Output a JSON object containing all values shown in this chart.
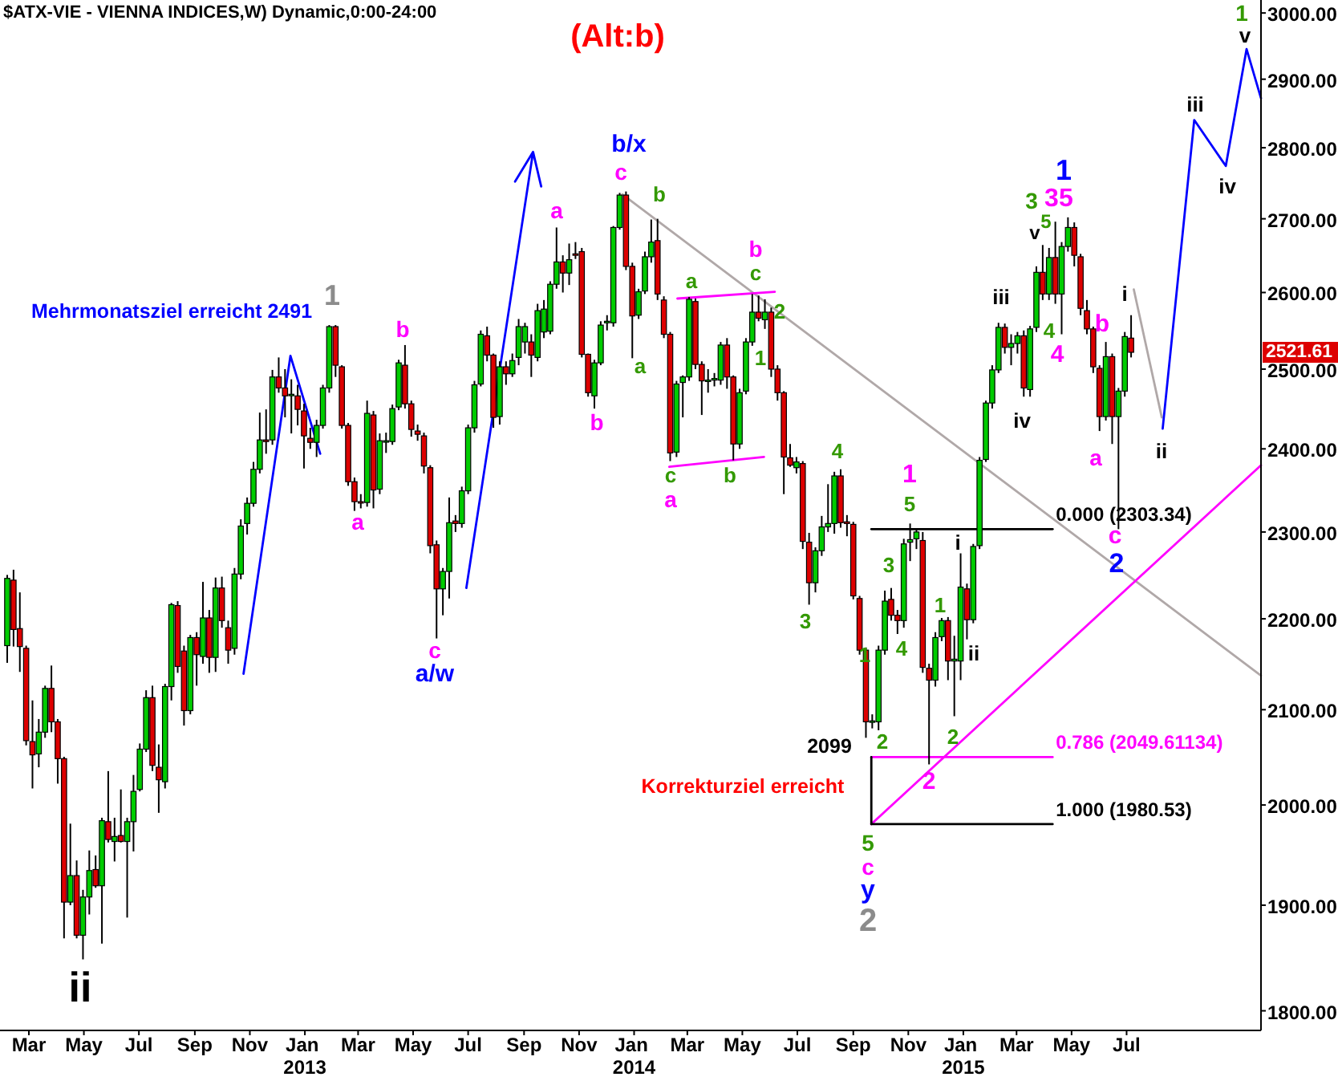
{
  "chart_data": {
    "type": "candlestick",
    "title": "$ATX-VIE - VIENNA INDICES,W) Dynamic,0:00-24:00",
    "subtitle": "(Alt:b)",
    "x": [
      "2012-02-06",
      "2012-02-13",
      "2012-02-20",
      "2012-02-27",
      "2012-03-05",
      "2012-03-12",
      "2012-03-19",
      "2012-03-26",
      "2012-04-02",
      "2012-04-09",
      "2012-04-16",
      "2012-04-23",
      "2012-04-30",
      "2012-05-07",
      "2012-05-14",
      "2012-05-21",
      "2012-05-28",
      "2012-06-04",
      "2012-06-11",
      "2012-06-18",
      "2012-06-25",
      "2012-07-02",
      "2012-07-09",
      "2012-07-16",
      "2012-07-23",
      "2012-07-30",
      "2012-08-06",
      "2012-08-13",
      "2012-08-20",
      "2012-08-27",
      "2012-09-03",
      "2012-09-10",
      "2012-09-17",
      "2012-09-24",
      "2012-10-01",
      "2012-10-08",
      "2012-10-15",
      "2012-10-22",
      "2012-10-29",
      "2012-11-05",
      "2012-11-12",
      "2012-11-19",
      "2012-11-26",
      "2012-12-03",
      "2012-12-10",
      "2012-12-17",
      "2012-12-24",
      "2012-12-31",
      "2013-01-07",
      "2013-01-14",
      "2013-01-21",
      "2013-01-28",
      "2013-02-04",
      "2013-02-11",
      "2013-02-18",
      "2013-02-25",
      "2013-03-04",
      "2013-03-11",
      "2013-03-18",
      "2013-03-25",
      "2013-04-01",
      "2013-04-08",
      "2013-04-15",
      "2013-04-22",
      "2013-04-29",
      "2013-05-06",
      "2013-05-13",
      "2013-05-20",
      "2013-05-27",
      "2013-06-03",
      "2013-06-10",
      "2013-06-17",
      "2013-06-24",
      "2013-07-01",
      "2013-07-08",
      "2013-07-15",
      "2013-07-22",
      "2013-07-29",
      "2013-08-05",
      "2013-08-12",
      "2013-08-19",
      "2013-08-26",
      "2013-09-02",
      "2013-09-09",
      "2013-09-16",
      "2013-09-23",
      "2013-09-30",
      "2013-10-07",
      "2013-10-14",
      "2013-10-21",
      "2013-10-28",
      "2013-11-04",
      "2013-11-11",
      "2013-11-18",
      "2013-11-25",
      "2013-12-02",
      "2013-12-09",
      "2013-12-16",
      "2013-12-23",
      "2013-12-30",
      "2014-01-06",
      "2014-01-13",
      "2014-01-20",
      "2014-01-27",
      "2014-02-03",
      "2014-02-10",
      "2014-02-17",
      "2014-02-24",
      "2014-03-03",
      "2014-03-10",
      "2014-03-17",
      "2014-03-24",
      "2014-03-31",
      "2014-04-07",
      "2014-04-14",
      "2014-04-21",
      "2014-04-28",
      "2014-05-05",
      "2014-05-12",
      "2014-05-19",
      "2014-05-26",
      "2014-06-02",
      "2014-06-09",
      "2014-06-16",
      "2014-06-23",
      "2014-06-30",
      "2014-07-07",
      "2014-07-14",
      "2014-07-21",
      "2014-07-28",
      "2014-08-04",
      "2014-08-11",
      "2014-08-18",
      "2014-08-25",
      "2014-09-01",
      "2014-09-08",
      "2014-09-15",
      "2014-09-22",
      "2014-09-29",
      "2014-10-06",
      "2014-10-13",
      "2014-10-20",
      "2014-10-27",
      "2014-11-03",
      "2014-11-10",
      "2014-11-17",
      "2014-11-24",
      "2014-12-01",
      "2014-12-08",
      "2014-12-15",
      "2014-12-22",
      "2014-12-29",
      "2015-01-05",
      "2015-01-12",
      "2015-01-19",
      "2015-01-26",
      "2015-02-02",
      "2015-02-09",
      "2015-02-16",
      "2015-02-23",
      "2015-03-02",
      "2015-03-09",
      "2015-03-16",
      "2015-03-23",
      "2015-03-30",
      "2015-04-06",
      "2015-04-13",
      "2015-04-20",
      "2015-04-27",
      "2015-05-04",
      "2015-05-11",
      "2015-05-18",
      "2015-05-25",
      "2015-06-01",
      "2015-06-08",
      "2015-06-15",
      "2015-06-22",
      "2015-06-29",
      "2015-07-06"
    ],
    "ohlc": [
      [
        2170,
        2250,
        2151,
        2246
      ],
      [
        2244,
        2256,
        2169,
        2188
      ],
      [
        2189,
        2230,
        2141,
        2169
      ],
      [
        2167,
        2170,
        2062,
        2067
      ],
      [
        2066,
        2110,
        2017,
        2052
      ],
      [
        2053,
        2090,
        2039,
        2076
      ],
      [
        2076,
        2126,
        2070,
        2123
      ],
      [
        2123,
        2148,
        2076,
        2087
      ],
      [
        2087,
        2090,
        2022,
        2048
      ],
      [
        2048,
        2050,
        1868,
        1903
      ],
      [
        1903,
        1981,
        1900,
        1929
      ],
      [
        1929,
        1944,
        1868,
        1871
      ],
      [
        1871,
        1915,
        1848,
        1908
      ],
      [
        1908,
        1954,
        1891,
        1934
      ],
      [
        1935,
        1949,
        1917,
        1919
      ],
      [
        1919,
        1987,
        1863,
        1984
      ],
      [
        1983,
        2035,
        1962,
        1965
      ],
      [
        1963,
        1987,
        1943,
        1968
      ],
      [
        1969,
        2016,
        1962,
        1963
      ],
      [
        1963,
        1987,
        1888,
        1983
      ],
      [
        1983,
        2031,
        1953,
        2014
      ],
      [
        2016,
        2064,
        2014,
        2058
      ],
      [
        2058,
        2121,
        2055,
        2113
      ],
      [
        2113,
        2126,
        2035,
        2041
      ],
      [
        2039,
        2063,
        1992,
        2026
      ],
      [
        2024,
        2128,
        2017,
        2125
      ],
      [
        2125,
        2218,
        2110,
        2216
      ],
      [
        2215,
        2220,
        2140,
        2147
      ],
      [
        2164,
        2170,
        2083,
        2099
      ],
      [
        2099,
        2182,
        2095,
        2179
      ],
      [
        2179,
        2185,
        2126,
        2160
      ],
      [
        2158,
        2242,
        2150,
        2201
      ],
      [
        2201,
        2210,
        2140,
        2157
      ],
      [
        2157,
        2247,
        2141,
        2235
      ],
      [
        2235,
        2248,
        2190,
        2198
      ],
      [
        2190,
        2198,
        2150,
        2165
      ],
      [
        2167,
        2258,
        2160,
        2251
      ],
      [
        2251,
        2315,
        2245,
        2307
      ],
      [
        2310,
        2341,
        2297,
        2334
      ],
      [
        2334,
        2384,
        2330,
        2375
      ],
      [
        2375,
        2445,
        2370,
        2411
      ],
      [
        2411,
        2449,
        2394,
        2409
      ],
      [
        2411,
        2499,
        2405,
        2490
      ],
      [
        2490,
        2515,
        2470,
        2476
      ],
      [
        2476,
        2500,
        2439,
        2466
      ],
      [
        2467,
        2487,
        2419,
        2468
      ],
      [
        2466,
        2480,
        2429,
        2449
      ],
      [
        2447,
        2456,
        2376,
        2416
      ],
      [
        2413,
        2426,
        2400,
        2408
      ],
      [
        2408,
        2436,
        2390,
        2429
      ],
      [
        2429,
        2480,
        2425,
        2476
      ],
      [
        2476,
        2557,
        2470,
        2555
      ],
      [
        2555,
        2557,
        2490,
        2505
      ],
      [
        2503,
        2505,
        2425,
        2429
      ],
      [
        2429,
        2432,
        2355,
        2360
      ],
      [
        2360,
        2365,
        2325,
        2336
      ],
      [
        2336,
        2345,
        2328,
        2335
      ],
      [
        2335,
        2460,
        2330,
        2444
      ],
      [
        2442,
        2447,
        2328,
        2350
      ],
      [
        2351,
        2419,
        2345,
        2410
      ],
      [
        2409,
        2420,
        2395,
        2410
      ],
      [
        2409,
        2455,
        2405,
        2450
      ],
      [
        2452,
        2512,
        2448,
        2508
      ],
      [
        2505,
        2531,
        2450,
        2456
      ],
      [
        2456,
        2460,
        2415,
        2424
      ],
      [
        2422,
        2430,
        2410,
        2418
      ],
      [
        2416,
        2420,
        2370,
        2379
      ],
      [
        2377,
        2380,
        2275,
        2284
      ],
      [
        2285,
        2290,
        2178,
        2234
      ],
      [
        2234,
        2258,
        2204,
        2254
      ],
      [
        2254,
        2341,
        2223,
        2311
      ],
      [
        2313,
        2320,
        2300,
        2310
      ],
      [
        2310,
        2354,
        2305,
        2349
      ],
      [
        2349,
        2430,
        2345,
        2426
      ],
      [
        2426,
        2485,
        2420,
        2480
      ],
      [
        2481,
        2550,
        2478,
        2545
      ],
      [
        2543,
        2555,
        2510,
        2518
      ],
      [
        2518,
        2520,
        2426,
        2439
      ],
      [
        2440,
        2510,
        2430,
        2503
      ],
      [
        2503,
        2510,
        2480,
        2494
      ],
      [
        2494,
        2520,
        2490,
        2511
      ],
      [
        2515,
        2565,
        2505,
        2555
      ],
      [
        2535,
        2560,
        2520,
        2555
      ],
      [
        2535,
        2545,
        2490,
        2518
      ],
      [
        2515,
        2585,
        2510,
        2576
      ],
      [
        2548,
        2590,
        2540,
        2578
      ],
      [
        2549,
        2615,
        2545,
        2611
      ],
      [
        2611,
        2688,
        2605,
        2641
      ],
      [
        2641,
        2650,
        2600,
        2626
      ],
      [
        2626,
        2666,
        2610,
        2644
      ],
      [
        2652,
        2668,
        2645,
        2650
      ],
      [
        2655,
        2660,
        2515,
        2519
      ],
      [
        2519,
        2520,
        2465,
        2470
      ],
      [
        2466,
        2512,
        2450,
        2508
      ],
      [
        2508,
        2562,
        2505,
        2557
      ],
      [
        2560,
        2570,
        2550,
        2562
      ],
      [
        2560,
        2690,
        2555,
        2688
      ],
      [
        2688,
        2736,
        2685,
        2733
      ],
      [
        2733,
        2738,
        2630,
        2635
      ],
      [
        2635,
        2640,
        2514,
        2569
      ],
      [
        2570,
        2605,
        2565,
        2601
      ],
      [
        2602,
        2655,
        2598,
        2648
      ],
      [
        2648,
        2699,
        2640,
        2668
      ],
      [
        2670,
        2700,
        2590,
        2598
      ],
      [
        2590,
        2595,
        2540,
        2545
      ],
      [
        2545,
        2548,
        2385,
        2395
      ],
      [
        2396,
        2485,
        2390,
        2481
      ],
      [
        2483,
        2492,
        2439,
        2490
      ],
      [
        2490,
        2594,
        2485,
        2591
      ],
      [
        2588,
        2592,
        2500,
        2506
      ],
      [
        2506,
        2510,
        2442,
        2485
      ],
      [
        2485,
        2500,
        2470,
        2486
      ],
      [
        2486,
        2495,
        2478,
        2488
      ],
      [
        2486,
        2535,
        2480,
        2531
      ],
      [
        2531,
        2540,
        2475,
        2490
      ],
      [
        2490,
        2492,
        2386,
        2406
      ],
      [
        2406,
        2475,
        2400,
        2470
      ],
      [
        2472,
        2540,
        2468,
        2535
      ],
      [
        2535,
        2598,
        2530,
        2574
      ],
      [
        2574,
        2596,
        2562,
        2566
      ],
      [
        2564,
        2591,
        2552,
        2574
      ],
      [
        2574,
        2580,
        2490,
        2500
      ],
      [
        2500,
        2505,
        2460,
        2470
      ],
      [
        2470,
        2472,
        2345,
        2390
      ],
      [
        2389,
        2406,
        2378,
        2380
      ],
      [
        2377,
        2390,
        2370,
        2384
      ],
      [
        2382,
        2385,
        2280,
        2289
      ],
      [
        2288,
        2299,
        2216,
        2241
      ],
      [
        2241,
        2282,
        2230,
        2278
      ],
      [
        2278,
        2319,
        2272,
        2306
      ],
      [
        2306,
        2357,
        2300,
        2310
      ],
      [
        2310,
        2372,
        2298,
        2367
      ],
      [
        2367,
        2375,
        2305,
        2311
      ],
      [
        2312,
        2320,
        2295,
        2310
      ],
      [
        2309,
        2312,
        2222,
        2226
      ],
      [
        2223,
        2226,
        2160,
        2165
      ],
      [
        2165,
        2168,
        2070,
        2087
      ],
      [
        2087,
        2095,
        2080,
        2088
      ],
      [
        2087,
        2170,
        2078,
        2165
      ],
      [
        2165,
        2232,
        2160,
        2220
      ],
      [
        2222,
        2235,
        2198,
        2204
      ],
      [
        2204,
        2210,
        2183,
        2198
      ],
      [
        2198,
        2292,
        2190,
        2286
      ],
      [
        2288,
        2310,
        2266,
        2291
      ],
      [
        2292,
        2303,
        2280,
        2300
      ],
      [
        2290,
        2300,
        2140,
        2146
      ],
      [
        2145,
        2150,
        2042,
        2132
      ],
      [
        2132,
        2185,
        2125,
        2179
      ],
      [
        2180,
        2201,
        2175,
        2198
      ],
      [
        2198,
        2202,
        2132,
        2153
      ],
      [
        2153,
        2181,
        2093,
        2155
      ],
      [
        2153,
        2275,
        2132,
        2236
      ],
      [
        2234,
        2240,
        2177,
        2199
      ],
      [
        2199,
        2286,
        2195,
        2283
      ],
      [
        2284,
        2390,
        2280,
        2386
      ],
      [
        2387,
        2460,
        2384,
        2457
      ],
      [
        2457,
        2505,
        2450,
        2499
      ],
      [
        2499,
        2560,
        2495,
        2554
      ],
      [
        2554,
        2559,
        2520,
        2528
      ],
      [
        2528,
        2545,
        2505,
        2533
      ],
      [
        2533,
        2548,
        2520,
        2543
      ],
      [
        2543,
        2550,
        2465,
        2476
      ],
      [
        2474,
        2556,
        2465,
        2552
      ],
      [
        2554,
        2635,
        2548,
        2627
      ],
      [
        2627,
        2664,
        2590,
        2598
      ],
      [
        2598,
        2660,
        2590,
        2647
      ],
      [
        2647,
        2696,
        2585,
        2598
      ],
      [
        2598,
        2668,
        2545,
        2662
      ],
      [
        2662,
        2702,
        2655,
        2688
      ],
      [
        2688,
        2695,
        2635,
        2650
      ],
      [
        2648,
        2652,
        2570,
        2579
      ],
      [
        2576,
        2590,
        2545,
        2552
      ],
      [
        2552,
        2555,
        2495,
        2503
      ],
      [
        2501,
        2505,
        2422,
        2440
      ],
      [
        2440,
        2535,
        2435,
        2516
      ],
      [
        2516,
        2520,
        2406,
        2440
      ],
      [
        2440,
        2476,
        2303.34,
        2472
      ],
      [
        2472,
        2548,
        2465,
        2542
      ],
      [
        2540,
        2570,
        2515,
        2521.61
      ]
    ],
    "colors": [
      "#00cc00",
      "#dd0000",
      "#dd0000",
      "#dd0000",
      "#dd0000",
      "#00cc00",
      "#00cc00",
      "#dd0000",
      "#dd0000",
      "#dd0000",
      "#00cc00",
      "#dd0000",
      "#00cc00",
      "#00cc00",
      "#dd0000",
      "#00cc00",
      "#dd0000",
      "#00cc00",
      "#dd0000",
      "#00cc00",
      "#00cc00",
      "#00cc00",
      "#00cc00",
      "#dd0000",
      "#dd0000",
      "#00cc00",
      "#00cc00",
      "#dd0000",
      "#dd0000",
      "#00cc00",
      "#dd0000",
      "#00cc00",
      "#dd0000",
      "#00cc00",
      "#dd0000",
      "#dd0000",
      "#00cc00",
      "#00cc00",
      "#00cc00",
      "#00cc00",
      "#00cc00",
      "#dd0000",
      "#00cc00",
      "#dd0000",
      "#dd0000",
      "#00cc00",
      "#dd0000",
      "#dd0000",
      "#dd0000",
      "#00cc00",
      "#00cc00",
      "#00cc00",
      "#dd0000",
      "#dd0000",
      "#dd0000",
      "#dd0000",
      "#dd0000",
      "#00cc00",
      "#dd0000",
      "#00cc00",
      "#00cc00",
      "#00cc00",
      "#00cc00",
      "#dd0000",
      "#dd0000",
      "#dd0000",
      "#dd0000",
      "#dd0000",
      "#dd0000",
      "#00cc00",
      "#00cc00",
      "#dd0000",
      "#00cc00",
      "#00cc00",
      "#00cc00",
      "#00cc00",
      "#dd0000",
      "#dd0000",
      "#00cc00",
      "#dd0000",
      "#00cc00",
      "#00cc00",
      "#00cc00",
      "#dd0000",
      "#00cc00",
      "#00cc00",
      "#00cc00",
      "#00cc00",
      "#dd0000",
      "#00cc00",
      "#dd0000",
      "#dd0000",
      "#dd0000",
      "#00cc00",
      "#00cc00",
      "#00cc00",
      "#00cc00",
      "#00cc00",
      "#dd0000",
      "#dd0000",
      "#00cc00",
      "#00cc00",
      "#00cc00",
      "#dd0000",
      "#dd0000",
      "#dd0000",
      "#00cc00",
      "#00cc00",
      "#00cc00",
      "#dd0000",
      "#dd0000",
      "#00cc00",
      "#00cc00",
      "#00cc00",
      "#dd0000",
      "#dd0000",
      "#00cc00",
      "#00cc00",
      "#00cc00",
      "#dd0000",
      "#00cc00",
      "#dd0000",
      "#dd0000",
      "#dd0000",
      "#dd0000",
      "#00cc00",
      "#dd0000",
      "#dd0000",
      "#00cc00",
      "#00cc00",
      "#00cc00",
      "#00cc00",
      "#dd0000",
      "#dd0000",
      "#dd0000",
      "#dd0000",
      "#dd0000",
      "#00cc00",
      "#00cc00",
      "#00cc00",
      "#dd0000",
      "#dd0000",
      "#00cc00",
      "#00cc00",
      "#00cc00",
      "#dd0000",
      "#dd0000",
      "#00cc00",
      "#00cc00",
      "#dd0000",
      "#00cc00",
      "#00cc00",
      "#dd0000",
      "#00cc00",
      "#00cc00",
      "#00cc00",
      "#00cc00",
      "#00cc00",
      "#dd0000",
      "#00cc00",
      "#00cc00",
      "#dd0000",
      "#00cc00",
      "#00cc00",
      "#dd0000",
      "#00cc00",
      "#dd0000",
      "#00cc00",
      "#00cc00",
      "#dd0000",
      "#dd0000",
      "#dd0000",
      "#dd0000",
      "#dd0000",
      "#00cc00",
      "#dd0000",
      "#00cc00",
      "#00cc00",
      "#dd0000"
    ],
    "series": [
      {
        "type": "line",
        "color": "#0000ff",
        "x": [
          "2012-10-25",
          "2012-12-16",
          "2013-01-18"
        ],
        "values": [
          2139,
          2517,
          2394
        ]
      },
      {
        "type": "line",
        "color": "#0000ff",
        "x": [
          "2013-06-29",
          "2013-09-11",
          "2013-08-22",
          "2013-09-11",
          "2013-09-20"
        ],
        "values": [
          2235,
          2794,
          2752,
          2794,
          2745
        ]
      },
      {
        "type": "line",
        "color": "#b0a8a8",
        "x": [
          "2013-12-19",
          "2015-11-27"
        ],
        "values": [
          2734,
          2137
        ]
      },
      {
        "type": "line",
        "color": "#ff00ff",
        "x": [
          "2014-09-21",
          "2015-11-27"
        ],
        "values": [
          1980.53,
          2380
        ]
      },
      {
        "type": "line",
        "color": "#000000",
        "x": [
          "2014-09-21",
          "2015-04-10"
        ],
        "values": [
          2303.34,
          2303.34
        ]
      },
      {
        "type": "line",
        "color": "#ff00ff",
        "x": [
          "2014-09-21",
          "2015-04-10"
        ],
        "values": [
          2049.61134,
          2049.61134
        ]
      },
      {
        "type": "line",
        "color": "#000000",
        "x": [
          "2014-09-21",
          "2015-04-10"
        ],
        "values": [
          1980.53,
          1980.53
        ]
      },
      {
        "type": "line",
        "color": "#000000",
        "x": [
          "2014-09-21",
          "2014-09-21"
        ],
        "values": [
          2049.61134,
          1980.53
        ]
      },
      {
        "type": "line",
        "color": "#ff00ff",
        "x": [
          "2014-02-18",
          "2014-06-06"
        ],
        "values": [
          2592,
          2601
        ]
      },
      {
        "type": "line",
        "color": "#ff00ff",
        "x": [
          "2014-02-09",
          "2014-05-25"
        ],
        "values": [
          2378,
          2390
        ]
      },
      {
        "type": "line",
        "color": "#b0a8a8",
        "x": [
          "2015-07-09",
          "2015-08-09"
        ],
        "values": [
          2604,
          2439
        ]
      },
      {
        "type": "line",
        "color": "#0000ff",
        "x": [
          "2015-08-10",
          "2015-09-14",
          "2015-10-19",
          "2015-11-11",
          "2015-11-27"
        ],
        "values": [
          2425,
          2840,
          2774,
          2945,
          2872
        ]
      }
    ],
    "xlim": [
      "2012-01-29",
      "2015-11-27"
    ],
    "ylim": [
      1782,
      3020
    ],
    "log": true,
    "xticks": [
      {
        "value": "2012-03-01",
        "label": "Mar"
      },
      {
        "value": "2012-05-01",
        "label": "May"
      },
      {
        "value": "2012-07-01",
        "label": "Jul"
      },
      {
        "value": "2012-09-01",
        "label": "Sep"
      },
      {
        "value": "2012-11-01",
        "label": "Nov"
      },
      {
        "value": "2013-01-01",
        "label": "Jan 2013"
      },
      {
        "value": "2013-03-01",
        "label": "Mar"
      },
      {
        "value": "2013-05-01",
        "label": "May"
      },
      {
        "value": "2013-07-01",
        "label": "Jul"
      },
      {
        "value": "2013-09-01",
        "label": "Sep"
      },
      {
        "value": "2013-11-01",
        "label": "Nov"
      },
      {
        "value": "2014-01-01",
        "label": "Jan 2014"
      },
      {
        "value": "2014-03-01",
        "label": "Mar"
      },
      {
        "value": "2014-05-01",
        "label": "May"
      },
      {
        "value": "2014-07-01",
        "label": "Jul"
      },
      {
        "value": "2014-09-01",
        "label": "Sep"
      },
      {
        "value": "2014-11-01",
        "label": "Nov"
      },
      {
        "value": "2015-01-01",
        "label": "Jan 2015"
      },
      {
        "value": "2015-03-01",
        "label": "Mar"
      },
      {
        "value": "2015-05-01",
        "label": "May"
      },
      {
        "value": "2015-07-01",
        "label": "Jul"
      }
    ],
    "yticks": [
      {
        "value": 1800,
        "label": "1800.00"
      },
      {
        "value": 1900,
        "label": "1900.00"
      },
      {
        "value": 2000,
        "label": "2000.00"
      },
      {
        "value": 2100,
        "label": "2100.00"
      },
      {
        "value": 2200,
        "label": "2200.00"
      },
      {
        "value": 2300,
        "label": "2300.00"
      },
      {
        "value": 2400,
        "label": "2400.00"
      },
      {
        "value": 2500,
        "label": "2500.00"
      },
      {
        "value": 2600,
        "label": "2600.00"
      },
      {
        "value": 2700,
        "label": "2700.00"
      },
      {
        "value": 2800,
        "label": "2800.00"
      },
      {
        "value": 2900,
        "label": "2900.00"
      },
      {
        "value": 3000,
        "label": "3000.00"
      }
    ],
    "annotations": [
      "ii",
      "Mehrmonatsziel erreicht 2491",
      "1",
      "a",
      "b",
      "c",
      "a/w",
      "a",
      "b",
      "c",
      "b/x",
      "b",
      "a",
      "a",
      "c",
      "a",
      "b",
      "b",
      "c",
      "2",
      "1",
      "4",
      "3",
      "1",
      "5",
      "3",
      "4",
      "1",
      "2",
      "2099",
      "Korrekturziel erreicht",
      "2",
      "2",
      "1",
      "i",
      "ii",
      "iii",
      "iv",
      "v",
      "3",
      "5",
      "3",
      "5",
      "1",
      "4",
      "4",
      "b",
      "a",
      "i",
      "c",
      "2",
      "ii",
      "iii",
      "iv",
      "v",
      "1",
      "5",
      "c",
      "y",
      "2",
      {
        "text": "0.000 (2303.34)",
        "x": "2015-04-10",
        "y": 2303.34
      },
      {
        "text": "0.786 (2049.61134)",
        "x": "2015-04-10",
        "y": 2049.61134
      },
      {
        "text": "1.000 (1980.53)",
        "x": "2015-04-10",
        "y": 1980.53
      },
      "2521.61"
    ]
  }
}
